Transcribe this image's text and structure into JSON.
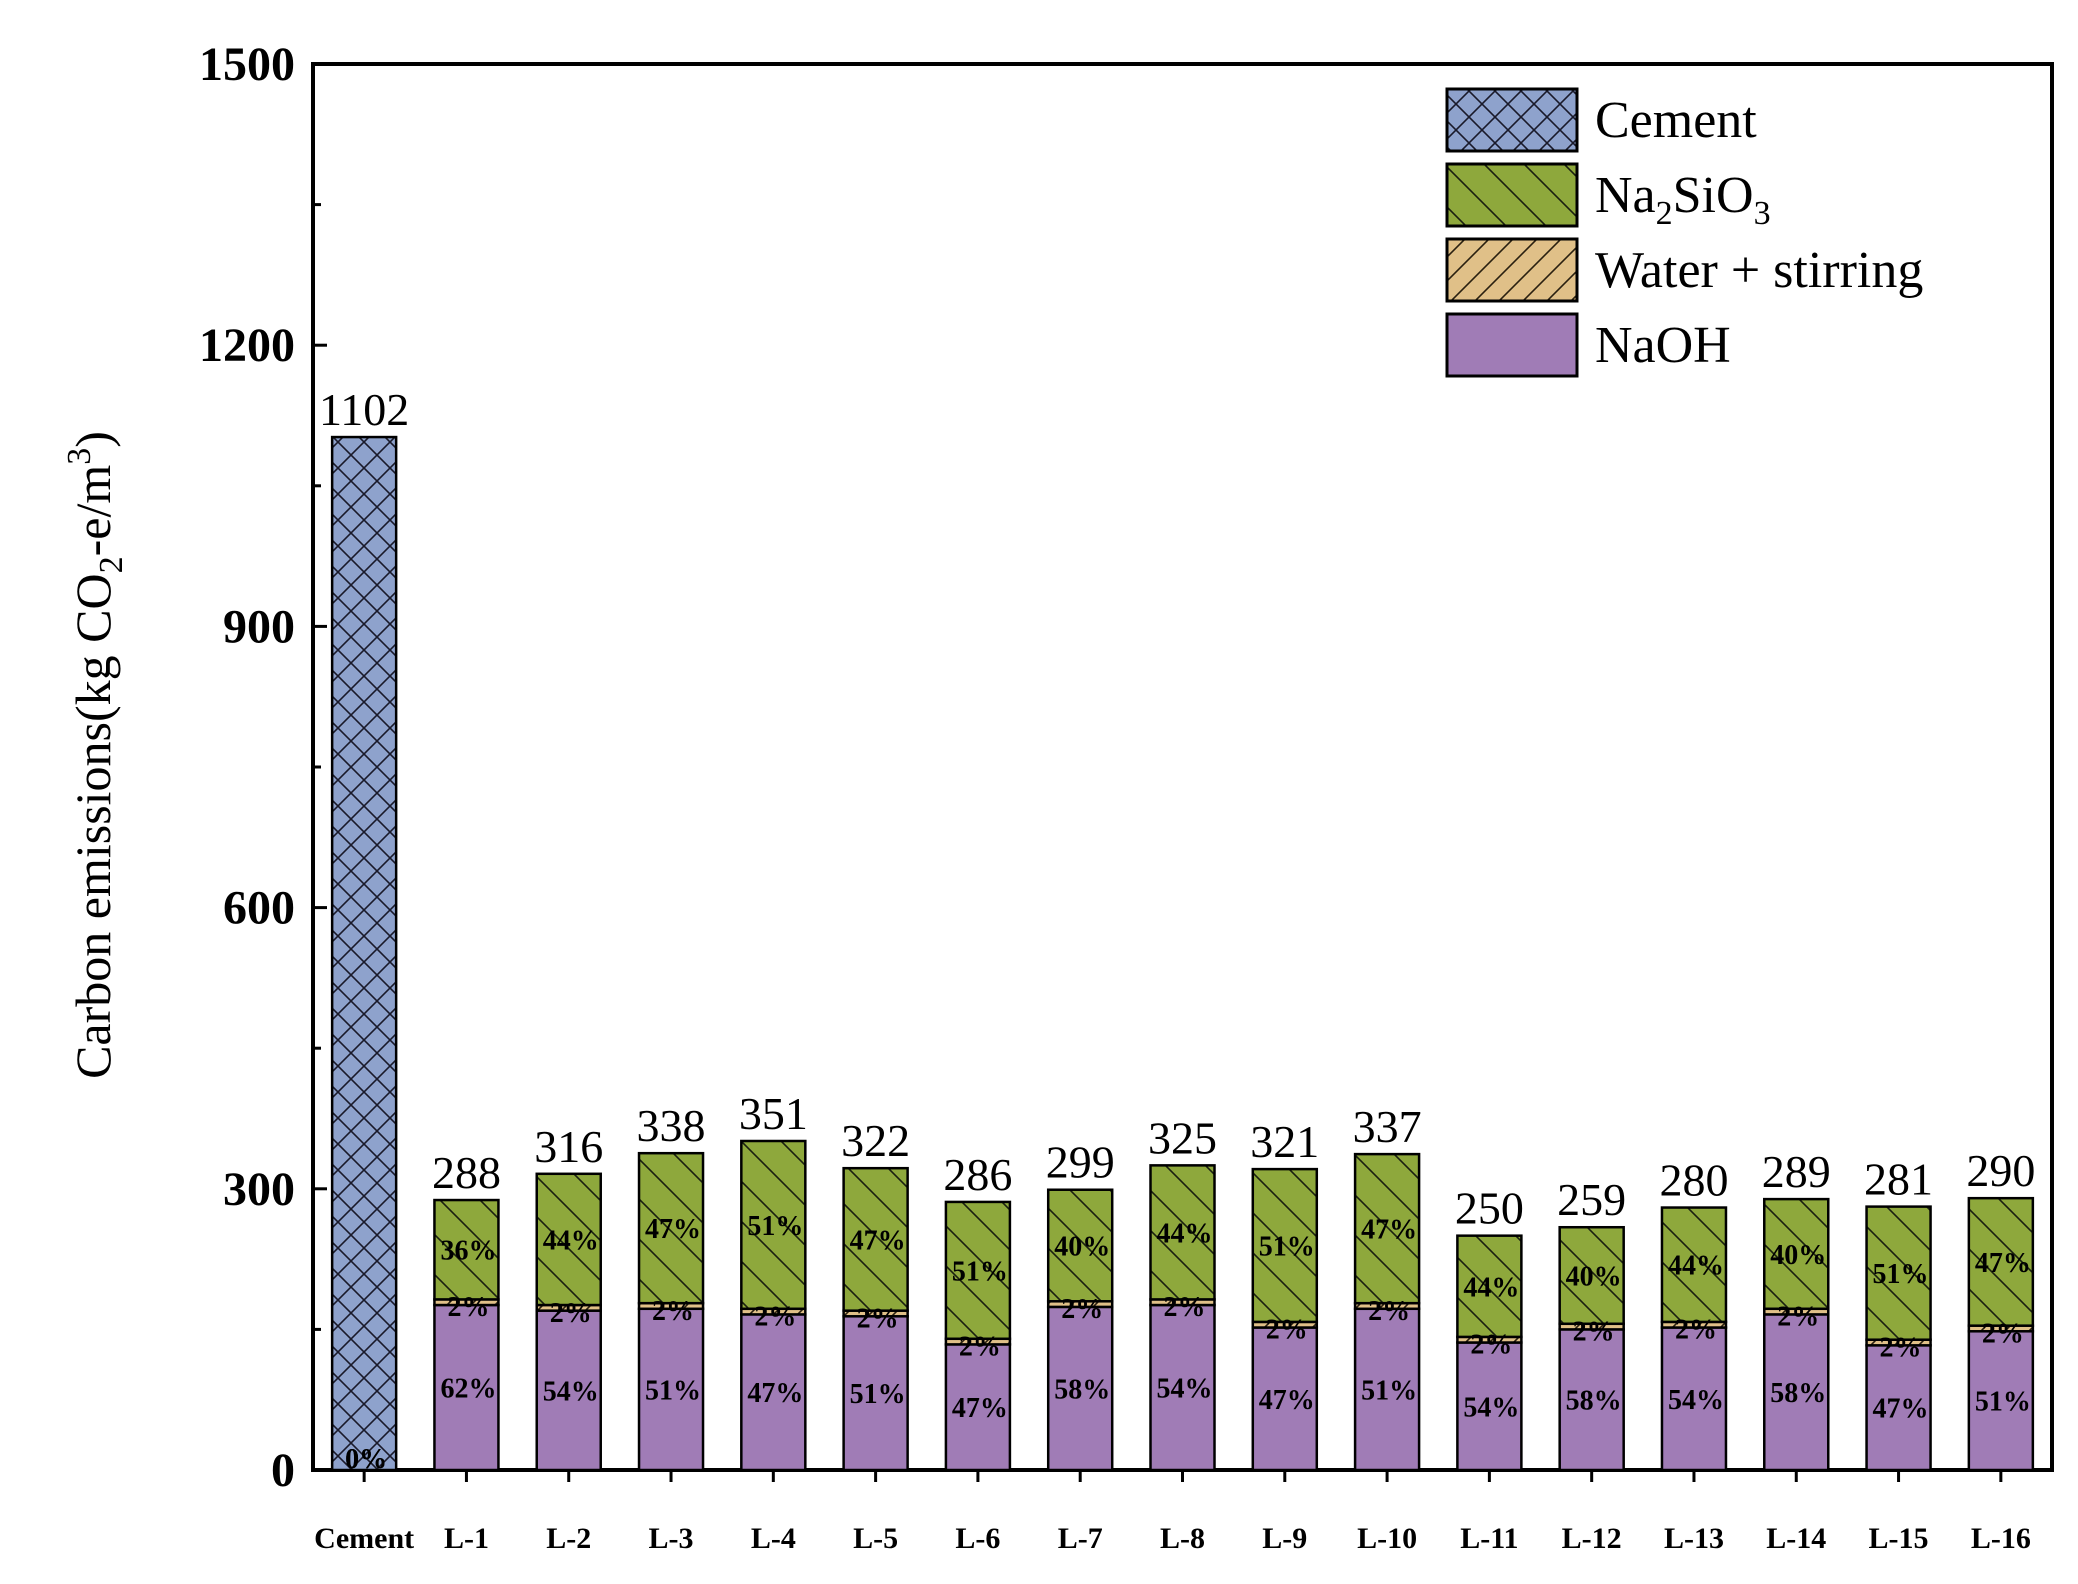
{
  "chart_data": {
    "type": "stacked-bar",
    "title": "",
    "xlabel": "",
    "ylabel": "Carbon emissions(kg CO2-e/m3)",
    "ylabel_parts": {
      "a": "Carbon emissions(kg CO",
      "sub": "2",
      "b": "-e/m",
      "sup": "3",
      "c": ")"
    },
    "ylim": [
      0,
      1500
    ],
    "yticks": [
      "0",
      "300",
      "600",
      "900",
      "1200",
      "1500"
    ],
    "grid": false,
    "legend_position": "top-right",
    "categories": [
      "Cement",
      "L-1",
      "L-2",
      "L-3",
      "L-4",
      "L-5",
      "L-6",
      "L-7",
      "L-8",
      "L-9",
      "L-10",
      "L-11",
      "L-12",
      "L-13",
      "L-14",
      "L-15",
      "L-16"
    ],
    "totals": [
      "1102",
      "288",
      "316",
      "338",
      "351",
      "322",
      "286",
      "299",
      "325",
      "321",
      "337",
      "250",
      "259",
      "280",
      "289",
      "281",
      "290"
    ],
    "series": [
      {
        "name": "NaOH",
        "color": "#a07cb6",
        "pattern": "none",
        "values": [
          0,
          176,
          170,
          172,
          166,
          164,
          134,
          174,
          176,
          152,
          172,
          136,
          150,
          152,
          166,
          133,
          148
        ],
        "labels": [
          "0%",
          "62%",
          "54%",
          "51%",
          "47%",
          "51%",
          "47%",
          "58%",
          "54%",
          "47%",
          "51%",
          "54%",
          "58%",
          "54%",
          "58%",
          "47%",
          "51%"
        ]
      },
      {
        "name": "Water + stirring",
        "color": "#e0c088",
        "pattern": "forward-diagonal",
        "values": [
          0,
          6,
          6,
          6,
          6,
          6,
          6,
          6,
          6,
          6,
          6,
          6,
          6,
          6,
          6,
          6,
          6
        ],
        "labels": [
          "0%",
          "2%",
          "2%",
          "2%",
          "2%",
          "2%",
          "2%",
          "2%",
          "2%",
          "2%",
          "2%",
          "2%",
          "2%",
          "2%",
          "2%",
          "2%",
          "2%"
        ]
      },
      {
        "name": "Na2SiO3",
        "color": "#8ea83c",
        "pattern": "back-diagonal",
        "values": [
          0,
          106,
          140,
          160,
          179,
          152,
          146,
          119,
          143,
          163,
          159,
          108,
          103,
          122,
          117,
          142,
          136
        ],
        "labels": [
          "",
          "36%",
          "44%",
          "47%",
          "51%",
          "47%",
          "51%",
          "40%",
          "44%",
          "51%",
          "47%",
          "44%",
          "40%",
          "44%",
          "40%",
          "51%",
          "47%"
        ]
      },
      {
        "name": "Cement",
        "color": "#8ea2cc",
        "pattern": "crosshatch",
        "values": [
          1102,
          0,
          0,
          0,
          0,
          0,
          0,
          0,
          0,
          0,
          0,
          0,
          0,
          0,
          0,
          0,
          0
        ],
        "labels": [
          "",
          "",
          "",
          "",
          "",
          "",
          "",
          "",
          "",
          "",
          "",
          "",
          "",
          "",
          "",
          "",
          ""
        ]
      }
    ],
    "legend": [
      {
        "name": "Cement",
        "parts": {
          "a": "Cement",
          "sub": "",
          "b": "",
          "sub2": ""
        }
      },
      {
        "name": "Na2SiO3",
        "parts": {
          "a": "Na",
          "sub": "2",
          "b": "SiO",
          "sub2": "3"
        }
      },
      {
        "name": "Water + stirring",
        "parts": {
          "a": "Water + stirring",
          "sub": "",
          "b": "",
          "sub2": ""
        }
      },
      {
        "name": "NaOH",
        "parts": {
          "a": "NaOH",
          "sub": "",
          "b": "",
          "sub2": ""
        }
      }
    ]
  }
}
